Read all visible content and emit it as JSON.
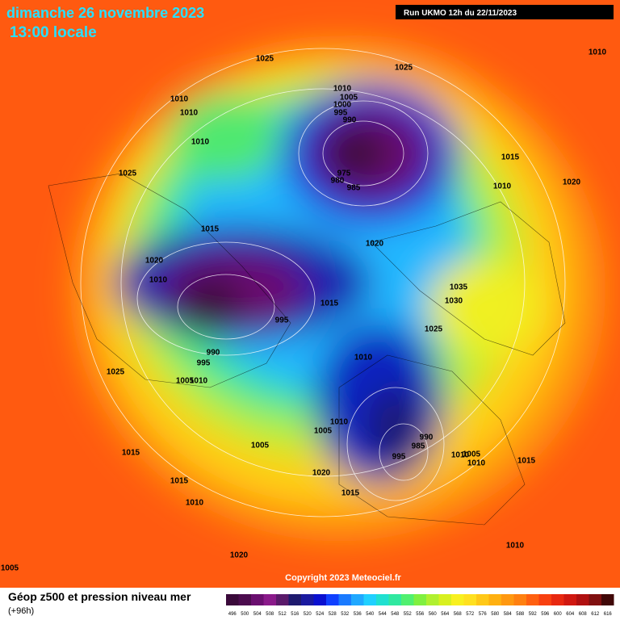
{
  "header": {
    "title": "dimanche 26 novembre 2023",
    "subtitle": "13:00 locale",
    "run": "Run UKMO 12h du 22/11/2023"
  },
  "isobars": [
    "1025",
    "1025",
    "1010",
    "1010",
    "1010",
    "1010",
    "1010",
    "1005",
    "1000",
    "995",
    "990",
    "1015",
    "1025",
    "975",
    "980",
    "985",
    "1010",
    "1020",
    "1015",
    "1020",
    "1020",
    "1010",
    "1035",
    "1030",
    "1015",
    "995",
    "1025",
    "990",
    "995",
    "1010",
    "1005",
    "1010",
    "1025",
    "1010",
    "1005",
    "990",
    "985",
    "995",
    "1010",
    "1005",
    "1010",
    "1015",
    "1005",
    "1015",
    "1020",
    "1015",
    "1015",
    "1010",
    "1020",
    "1010",
    "1005"
  ],
  "copyright": "Copyright 2023 Meteociel.fr",
  "legend": {
    "title": "Géop z500 et pression niveau mer",
    "lead": "(+96h)",
    "ticks": [
      496,
      500,
      504,
      508,
      512,
      516,
      520,
      524,
      528,
      532,
      536,
      540,
      544,
      548,
      552,
      556,
      560,
      564,
      568,
      572,
      576,
      580,
      584,
      588,
      592,
      596,
      600,
      604,
      608,
      612,
      616
    ],
    "colors": [
      "#3a0a3a",
      "#4c0c4e",
      "#6a0f6f",
      "#8a1a8a",
      "#5a1a6a",
      "#1e1a6e",
      "#1a1aa0",
      "#0a10d0",
      "#1040ff",
      "#1a7aff",
      "#20a8ff",
      "#20d0ff",
      "#20e0d0",
      "#30e8a0",
      "#50f070",
      "#80f040",
      "#b0f030",
      "#d8f020",
      "#f8f020",
      "#ffe020",
      "#ffc818",
      "#ffb010",
      "#ff9810",
      "#ff8010",
      "#ff6010",
      "#f84010",
      "#e82810",
      "#d01810",
      "#b01010",
      "#801010",
      "#400808"
    ]
  }
}
